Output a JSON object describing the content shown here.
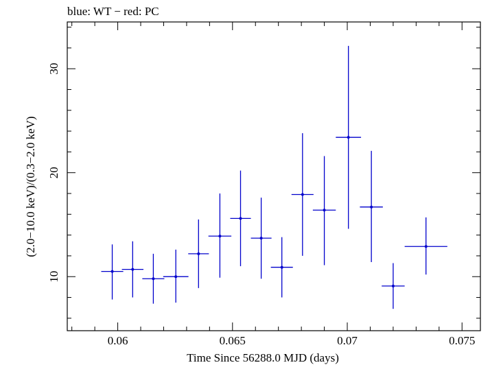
{
  "chart_data": {
    "type": "scatter",
    "title": "blue: WT − red: PC",
    "xlabel": "Time Since 56288.0 MJD (days)",
    "ylabel": "(2.0−10.0 keV)/(0.3−2.0 keV)",
    "xlim": [
      0.0578,
      0.0758
    ],
    "ylim": [
      4.8,
      34.5
    ],
    "xticks": [
      0.06,
      0.065,
      0.07,
      0.075
    ],
    "xtick_labels": [
      "0.06",
      "0.065",
      "0.07",
      "0.075"
    ],
    "yticks": [
      10,
      20,
      30
    ],
    "ytick_labels": [
      "10",
      "20",
      "30"
    ],
    "grid": false,
    "series": [
      {
        "color": "#0000cc",
        "points": [
          {
            "x": 0.05976,
            "xerr": 0.00048,
            "y": 10.5,
            "ylo": 7.8,
            "yhi": 13.1
          },
          {
            "x": 0.06065,
            "xerr": 0.00047,
            "y": 10.7,
            "ylo": 8.0,
            "yhi": 13.4
          },
          {
            "x": 0.06155,
            "xerr": 0.00048,
            "y": 9.8,
            "ylo": 7.4,
            "yhi": 12.2
          },
          {
            "x": 0.06253,
            "xerr": 0.00055,
            "y": 10.0,
            "ylo": 7.5,
            "yhi": 12.6
          },
          {
            "x": 0.06352,
            "xerr": 0.00045,
            "y": 12.2,
            "ylo": 8.9,
            "yhi": 15.5
          },
          {
            "x": 0.06445,
            "xerr": 0.0005,
            "y": 13.9,
            "ylo": 9.9,
            "yhi": 18.0
          },
          {
            "x": 0.06535,
            "xerr": 0.00045,
            "y": 15.6,
            "ylo": 11.0,
            "yhi": 20.2
          },
          {
            "x": 0.06625,
            "xerr": 0.00045,
            "y": 13.7,
            "ylo": 9.8,
            "yhi": 17.6
          },
          {
            "x": 0.06715,
            "xerr": 0.00048,
            "y": 10.9,
            "ylo": 8.0,
            "yhi": 13.8
          },
          {
            "x": 0.06805,
            "xerr": 0.00048,
            "y": 17.9,
            "ylo": 12.0,
            "yhi": 23.8
          },
          {
            "x": 0.069,
            "xerr": 0.0005,
            "y": 16.4,
            "ylo": 11.1,
            "yhi": 21.6
          },
          {
            "x": 0.07005,
            "xerr": 0.00055,
            "y": 23.4,
            "ylo": 14.6,
            "yhi": 32.2
          },
          {
            "x": 0.07105,
            "xerr": 0.0005,
            "y": 16.7,
            "ylo": 11.4,
            "yhi": 22.1
          },
          {
            "x": 0.072,
            "xerr": 0.0005,
            "y": 9.1,
            "ylo": 6.9,
            "yhi": 11.3
          },
          {
            "x": 0.07343,
            "xerr": 0.00093,
            "y": 12.9,
            "ylo": 10.2,
            "yhi": 15.7
          }
        ]
      }
    ]
  }
}
